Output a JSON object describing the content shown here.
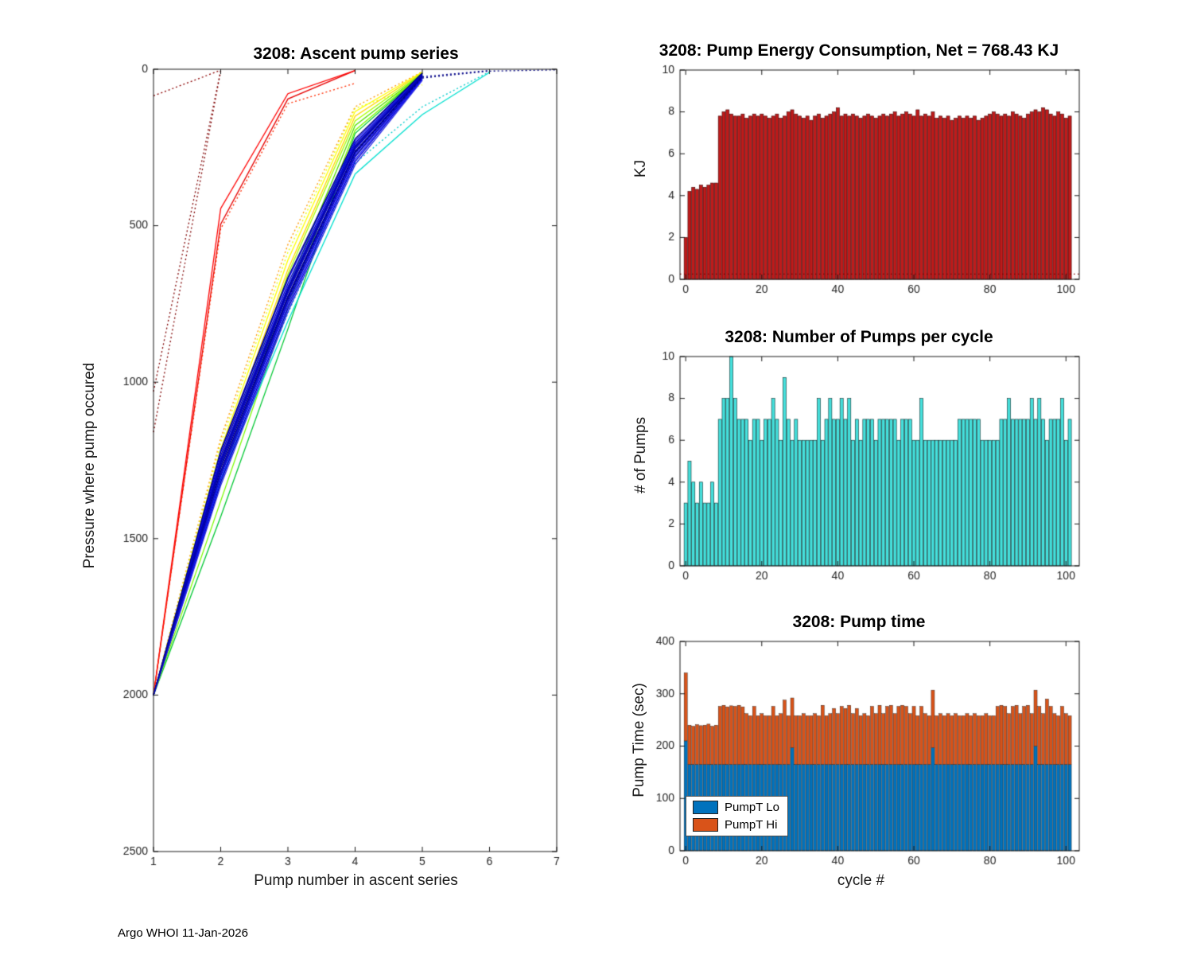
{
  "footer": "Argo WHOI 11-Jan-2026",
  "chart_data": [
    {
      "type": "line",
      "title": "3208: Ascent pump series",
      "xlabel": "Pump number in ascent series",
      "ylabel": "Pressure where pump occured",
      "xlim": [
        1,
        7
      ],
      "ylim": [
        0,
        2500
      ],
      "y_reversed": true,
      "xticks": [
        1,
        2,
        3,
        4,
        5,
        6,
        7
      ],
      "yticks": [
        0,
        500,
        1000,
        1500,
        2000,
        2500
      ],
      "grid": false,
      "legend": "none",
      "series": [
        {
          "color": "#7f0000",
          "dotted": true,
          "x": [
            1,
            2
          ],
          "y": [
            1160,
            5
          ]
        },
        {
          "color": "#7f0000",
          "dotted": true,
          "x": [
            1,
            2
          ],
          "y": [
            1030,
            5
          ]
        },
        {
          "color": "#8b0000",
          "dotted": true,
          "x": [
            1,
            2
          ],
          "y": [
            85,
            3
          ]
        },
        {
          "color": "#e60000",
          "dotted": false,
          "x": [
            1,
            2,
            3,
            4
          ],
          "y": [
            2000,
            495,
            95,
            4
          ]
        },
        {
          "color": "#ff0000",
          "dotted": false,
          "x": [
            1,
            2,
            3,
            4
          ],
          "y": [
            2000,
            445,
            78,
            4
          ]
        },
        {
          "color": "#ff2a00",
          "dotted": true,
          "x": [
            1,
            2,
            3,
            4
          ],
          "y": [
            2000,
            510,
            110,
            45
          ]
        },
        {
          "color": "#ff9900",
          "dotted": true,
          "x": [
            1,
            2,
            3,
            4,
            5
          ],
          "y": [
            2000,
            1180,
            560,
            120,
            8
          ]
        },
        {
          "color": "#ffd700",
          "dotted": false,
          "x": [
            1,
            2,
            3,
            4,
            5
          ],
          "y": [
            2000,
            1240,
            640,
            150,
            10
          ]
        },
        {
          "color": "#ffff00",
          "dotted": false,
          "x": [
            1,
            2,
            3,
            4,
            5
          ],
          "y": [
            2000,
            1215,
            610,
            135,
            9
          ]
        },
        {
          "color": "#e8ff00",
          "dotted": true,
          "x": [
            1,
            2,
            3,
            4,
            5
          ],
          "y": [
            2000,
            1195,
            585,
            125,
            50
          ]
        },
        {
          "color": "#aaff00",
          "dotted": false,
          "x": [
            1,
            2,
            3,
            4,
            5
          ],
          "y": [
            2000,
            1265,
            655,
            165,
            12
          ]
        },
        {
          "color": "#55e000",
          "dotted": false,
          "x": [
            1,
            2,
            3,
            4,
            5
          ],
          "y": [
            2000,
            1320,
            700,
            180,
            14
          ]
        },
        {
          "color": "#00c832",
          "dotted": false,
          "x": [
            1,
            2,
            3,
            4,
            5
          ],
          "y": [
            2000,
            1430,
            830,
            205,
            15
          ]
        },
        {
          "color": "#7cfc00",
          "dotted": false,
          "x": [
            1,
            2,
            3,
            4,
            5
          ],
          "y": [
            2000,
            1380,
            760,
            195,
            14
          ]
        },
        {
          "color": "#00e0d0",
          "dotted": false,
          "x": [
            1,
            2,
            3,
            4,
            5,
            6
          ],
          "y": [
            2000,
            1310,
            805,
            335,
            145,
            10
          ]
        },
        {
          "color": "#00cccc",
          "dotted": true,
          "x": [
            1,
            2,
            3,
            4,
            5,
            6
          ],
          "y": [
            2000,
            1290,
            780,
            300,
            120,
            8
          ]
        },
        {
          "color": "#000080",
          "dotted": false,
          "x": [
            1,
            2,
            3,
            4,
            5
          ],
          "y": [
            2000,
            1275,
            725,
            265,
            22
          ]
        },
        {
          "color": "#00008b",
          "dotted": false,
          "x": [
            1,
            2,
            3,
            4,
            5
          ],
          "y": [
            2000,
            1250,
            700,
            245,
            18
          ]
        },
        {
          "color": "#0000a0",
          "dotted": false,
          "x": [
            1,
            2,
            3,
            4,
            5
          ],
          "y": [
            2000,
            1300,
            745,
            280,
            28
          ]
        },
        {
          "color": "#0000b4",
          "dotted": false,
          "x": [
            1,
            2,
            3,
            4,
            5
          ],
          "y": [
            2000,
            1235,
            685,
            235,
            15
          ]
        },
        {
          "color": "#0000c8",
          "dotted": false,
          "x": [
            1,
            2,
            3,
            4,
            5
          ],
          "y": [
            2000,
            1320,
            765,
            295,
            32
          ]
        },
        {
          "color": "#0000dc",
          "dotted": false,
          "x": [
            1,
            2,
            3,
            4,
            5
          ],
          "y": [
            2000,
            1260,
            710,
            255,
            20
          ]
        },
        {
          "color": "#0000f0",
          "dotted": false,
          "x": [
            1,
            2,
            3,
            4,
            5
          ],
          "y": [
            2000,
            1290,
            735,
            270,
            25
          ]
        },
        {
          "color": "#0000ff",
          "dotted": false,
          "x": [
            1,
            2,
            3,
            4,
            5
          ],
          "y": [
            2000,
            1225,
            672,
            228,
            13
          ]
        },
        {
          "color": "#1414ff",
          "dotted": false,
          "x": [
            1,
            2,
            3,
            4,
            5
          ],
          "y": [
            2000,
            1310,
            755,
            288,
            30
          ]
        },
        {
          "color": "#0a0ae6",
          "dotted": false,
          "x": [
            1,
            2,
            3,
            4,
            5
          ],
          "y": [
            2000,
            1245,
            695,
            240,
            17
          ]
        },
        {
          "color": "#000096",
          "dotted": false,
          "x": [
            1,
            2,
            3,
            4,
            5
          ],
          "y": [
            2000,
            1285,
            730,
            262,
            24
          ]
        },
        {
          "color": "#0000be",
          "dotted": false,
          "x": [
            1,
            2,
            3,
            4,
            5
          ],
          "y": [
            2000,
            1268,
            715,
            252,
            19
          ]
        },
        {
          "color": "#2828e6",
          "dotted": false,
          "x": [
            1,
            2,
            3,
            4,
            5
          ],
          "y": [
            2000,
            1330,
            775,
            305,
            35
          ]
        },
        {
          "color": "#000078",
          "dotted": false,
          "x": [
            1,
            2,
            3,
            4,
            5
          ],
          "y": [
            2000,
            1218,
            665,
            222,
            12
          ]
        },
        {
          "color": "#1010c8",
          "dotted": false,
          "x": [
            1,
            2,
            3,
            4,
            5
          ],
          "y": [
            2000,
            1296,
            742,
            276,
            27
          ]
        },
        {
          "color": "#0505aa",
          "dotted": false,
          "x": [
            1,
            2,
            3,
            4,
            5
          ],
          "y": [
            2000,
            1256,
            705,
            248,
            18
          ]
        },
        {
          "color": "#000080",
          "dotted": true,
          "x": [
            4,
            5,
            6,
            7
          ],
          "y": [
            262,
            28,
            6,
            2
          ]
        },
        {
          "color": "#00008b",
          "dotted": true,
          "x": [
            3,
            4,
            5,
            6
          ],
          "y": [
            735,
            268,
            24,
            4
          ]
        }
      ]
    },
    {
      "type": "bar",
      "title": "3208: Pump Energy Consumption,  Net = 768.43 KJ",
      "net_label": "768.43 KJ",
      "xlabel": "",
      "ylabel": "KJ",
      "xlim": [
        -1.5,
        103.5
      ],
      "ylim": [
        0,
        10
      ],
      "xticks": [
        0,
        20,
        40,
        60,
        80,
        100
      ],
      "yticks": [
        0,
        2,
        4,
        6,
        8,
        10
      ],
      "bar_color": "#c01b1b",
      "bar_edge": "#3d0000",
      "dotted_baseline": 0.25,
      "baseline_color": "#7f0000",
      "values": [
        2.0,
        4.2,
        4.4,
        4.3,
        4.5,
        4.4,
        4.5,
        4.6,
        4.6,
        7.8,
        8.0,
        8.1,
        7.9,
        7.8,
        7.8,
        7.9,
        7.7,
        7.8,
        7.9,
        7.8,
        7.9,
        7.8,
        7.7,
        7.8,
        7.9,
        7.7,
        7.8,
        8.0,
        8.1,
        7.9,
        7.8,
        7.7,
        7.8,
        7.6,
        7.8,
        7.9,
        7.7,
        7.8,
        7.9,
        8.0,
        8.2,
        7.8,
        7.9,
        7.8,
        7.9,
        7.8,
        7.7,
        7.8,
        7.9,
        7.8,
        7.7,
        7.8,
        7.9,
        7.8,
        7.9,
        8.0,
        7.8,
        7.9,
        8.0,
        7.9,
        7.8,
        8.1,
        7.8,
        7.9,
        7.8,
        8.0,
        7.7,
        7.8,
        7.7,
        7.8,
        7.6,
        7.7,
        7.8,
        7.7,
        7.8,
        7.7,
        7.8,
        7.6,
        7.7,
        7.8,
        7.9,
        8.0,
        7.9,
        7.8,
        7.9,
        7.8,
        8.0,
        7.9,
        7.8,
        7.7,
        7.9,
        8.0,
        8.1,
        8.0,
        8.2,
        8.1,
        7.9,
        7.8,
        8.0,
        7.9,
        7.7,
        7.8
      ]
    },
    {
      "type": "bar",
      "title": "3208: Number of Pumps per cycle",
      "xlabel": "",
      "ylabel": "# of Pumps",
      "xlim": [
        -1.5,
        103.5
      ],
      "ylim": [
        0,
        10
      ],
      "xticks": [
        0,
        20,
        40,
        60,
        80,
        100
      ],
      "yticks": [
        0,
        2,
        4,
        6,
        8,
        10
      ],
      "bar_color": "#45e0dc",
      "bar_edge": "#062b2b",
      "values": [
        3,
        5,
        4,
        3,
        4,
        3,
        3,
        4,
        3,
        7,
        8,
        8,
        10,
        8,
        7,
        7,
        7,
        6,
        7,
        7,
        6,
        7,
        7,
        8,
        7,
        6,
        9,
        7,
        6,
        7,
        6,
        6,
        6,
        6,
        6,
        8,
        6,
        7,
        8,
        7,
        7,
        8,
        7,
        8,
        6,
        7,
        6,
        7,
        7,
        7,
        6,
        7,
        7,
        7,
        7,
        7,
        6,
        7,
        7,
        7,
        6,
        6,
        8,
        6,
        6,
        6,
        6,
        6,
        6,
        6,
        6,
        6,
        7,
        7,
        7,
        7,
        7,
        7,
        6,
        6,
        6,
        6,
        6,
        7,
        7,
        8,
        7,
        7,
        7,
        7,
        7,
        8,
        7,
        8,
        7,
        6,
        7,
        7,
        7,
        8,
        6,
        7
      ]
    },
    {
      "type": "stacked_bar",
      "title": "3208: Pump time",
      "xlabel": "cycle #",
      "ylabel": "Pump Time (sec)",
      "xlim": [
        -1.5,
        103.5
      ],
      "ylim": [
        0,
        400
      ],
      "xticks": [
        0,
        20,
        40,
        60,
        80,
        100
      ],
      "yticks": [
        0,
        100,
        200,
        300,
        400
      ],
      "bar_edge": "#1a1a1a",
      "legend_position": "bottom-left",
      "series": [
        {
          "name": "PumpT Lo",
          "color": "#0072bd",
          "values": [
            210,
            165,
            165,
            165,
            165,
            165,
            165,
            165,
            165,
            165,
            165,
            165,
            165,
            165,
            165,
            165,
            165,
            165,
            165,
            165,
            165,
            165,
            165,
            165,
            165,
            165,
            165,
            165,
            197,
            165,
            165,
            165,
            165,
            165,
            165,
            165,
            165,
            165,
            165,
            165,
            165,
            165,
            165,
            165,
            165,
            165,
            165,
            165,
            165,
            165,
            165,
            165,
            165,
            165,
            165,
            165,
            165,
            165,
            165,
            165,
            165,
            165,
            165,
            165,
            165,
            197,
            165,
            165,
            165,
            165,
            165,
            165,
            165,
            165,
            165,
            165,
            165,
            165,
            165,
            165,
            165,
            165,
            165,
            165,
            165,
            165,
            165,
            165,
            165,
            165,
            165,
            165,
            200,
            165,
            165,
            165,
            165,
            165,
            165,
            165,
            165,
            165
          ]
        },
        {
          "name": "PumpT Hi",
          "color": "#d95319",
          "values": [
            130,
            75,
            73,
            76,
            74,
            75,
            77,
            73,
            75,
            111,
            113,
            110,
            112,
            111,
            113,
            110,
            97,
            93,
            111,
            93,
            97,
            93,
            93,
            111,
            93,
            97,
            123,
            93,
            95,
            93,
            93,
            97,
            93,
            93,
            97,
            93,
            113,
            93,
            97,
            107,
            97,
            111,
            107,
            113,
            97,
            107,
            93,
            97,
            93,
            111,
            97,
            113,
            97,
            111,
            113,
            97,
            111,
            113,
            111,
            97,
            111,
            93,
            111,
            97,
            93,
            110,
            93,
            97,
            93,
            97,
            93,
            97,
            93,
            93,
            97,
            93,
            97,
            93,
            93,
            97,
            93,
            93,
            111,
            113,
            111,
            97,
            111,
            113,
            97,
            111,
            113,
            97,
            107,
            111,
            97,
            125,
            111,
            97,
            93,
            111,
            97,
            93
          ]
        }
      ]
    }
  ]
}
